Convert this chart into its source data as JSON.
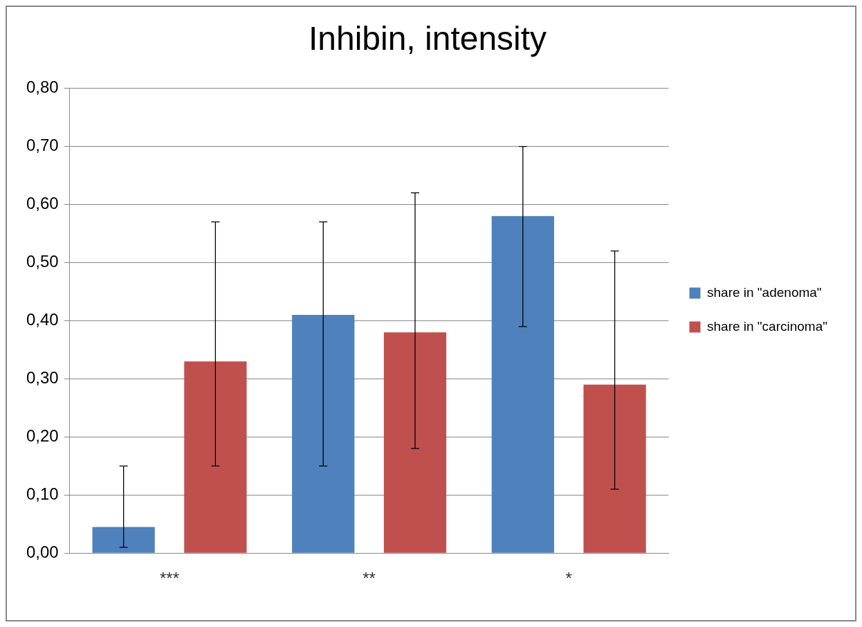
{
  "chart_data": {
    "type": "bar",
    "title": "Inhibin, intensity",
    "categories": [
      "***",
      "**",
      "*"
    ],
    "series": [
      {
        "name": "share in \"adenoma\"",
        "color": "#4f81bd",
        "values": [
          0.045,
          0.41,
          0.58
        ],
        "errors": [
          [
            0.01,
            0.15
          ],
          [
            0.15,
            0.57
          ],
          [
            0.39,
            0.7
          ]
        ]
      },
      {
        "name": "share in \"carcinoma\"",
        "color": "#c0504d",
        "values": [
          0.33,
          0.38,
          0.29
        ],
        "errors": [
          [
            0.15,
            0.57
          ],
          [
            0.18,
            0.62
          ],
          [
            0.11,
            0.52
          ]
        ]
      }
    ],
    "ylim": [
      0,
      0.8
    ],
    "yticks": [
      {
        "value": 0,
        "label": "0,00"
      },
      {
        "value": 0.1,
        "label": "0,10"
      },
      {
        "value": 0.2,
        "label": "0,20"
      },
      {
        "value": 0.3,
        "label": "0,30"
      },
      {
        "value": 0.4,
        "label": "0,40"
      },
      {
        "value": 0.5,
        "label": "0,50"
      },
      {
        "value": 0.6,
        "label": "0,60"
      },
      {
        "value": 0.7,
        "label": "0,70"
      },
      {
        "value": 0.8,
        "label": "0,80"
      }
    ],
    "grid": "y",
    "legend": "right"
  }
}
